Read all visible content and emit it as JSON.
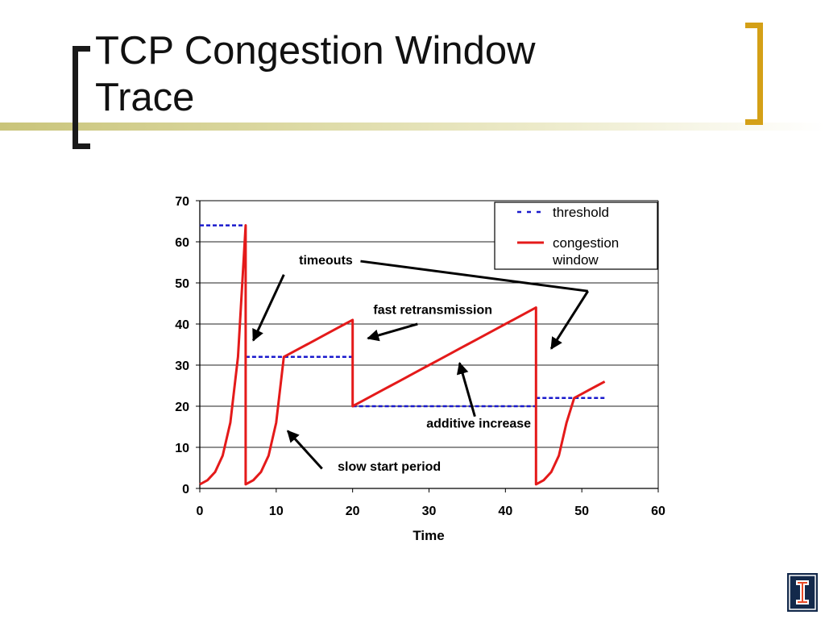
{
  "slide": {
    "title": "TCP Congestion Window\nTrace"
  },
  "logo": {
    "icon": "university-illinois-logo-icon"
  },
  "chart_data": {
    "type": "line",
    "xlabel": "Time",
    "ylabel": "",
    "xlim": [
      0,
      60
    ],
    "ylim": [
      0,
      70
    ],
    "xticks": [
      "0",
      "10",
      "20",
      "30",
      "40",
      "50",
      "60"
    ],
    "yticks": [
      "0",
      "10",
      "20",
      "30",
      "40",
      "50",
      "60",
      "70"
    ],
    "grid": "horizontal",
    "legend_position": "top-right",
    "legend": [
      "threshold",
      "congestion window"
    ],
    "series": [
      {
        "name": "threshold",
        "color": "#1a1acc",
        "style": "dashed",
        "segments": [
          [
            [
              0,
              64
            ],
            [
              6,
              64
            ]
          ],
          [
            [
              6,
              32
            ],
            [
              20,
              32
            ]
          ],
          [
            [
              20,
              20
            ],
            [
              44,
              20
            ]
          ],
          [
            [
              44,
              22
            ],
            [
              53,
              22
            ]
          ]
        ]
      },
      {
        "name": "congestion window",
        "color": "#e41a1a",
        "style": "solid",
        "points": [
          [
            0,
            1
          ],
          [
            1,
            2
          ],
          [
            2,
            4
          ],
          [
            3,
            8
          ],
          [
            4,
            16
          ],
          [
            5,
            32
          ],
          [
            6,
            64
          ],
          [
            6,
            1
          ],
          [
            7,
            2
          ],
          [
            8,
            4
          ],
          [
            9,
            8
          ],
          [
            10,
            16
          ],
          [
            11,
            32
          ],
          [
            12,
            33
          ],
          [
            13,
            34
          ],
          [
            14,
            35
          ],
          [
            15,
            36
          ],
          [
            16,
            37
          ],
          [
            17,
            38
          ],
          [
            18,
            39
          ],
          [
            19,
            40
          ],
          [
            20,
            41
          ],
          [
            20,
            20
          ],
          [
            21,
            21
          ],
          [
            22,
            22
          ],
          [
            23,
            23
          ],
          [
            24,
            24
          ],
          [
            25,
            25
          ],
          [
            26,
            26
          ],
          [
            27,
            27
          ],
          [
            28,
            28
          ],
          [
            29,
            29
          ],
          [
            30,
            30
          ],
          [
            31,
            31
          ],
          [
            32,
            32
          ],
          [
            33,
            33
          ],
          [
            34,
            34
          ],
          [
            35,
            35
          ],
          [
            36,
            36
          ],
          [
            37,
            37
          ],
          [
            38,
            38
          ],
          [
            39,
            39
          ],
          [
            40,
            40
          ],
          [
            41,
            41
          ],
          [
            42,
            42
          ],
          [
            43,
            43
          ],
          [
            44,
            44
          ],
          [
            44,
            1
          ],
          [
            45,
            2
          ],
          [
            46,
            4
          ],
          [
            47,
            8
          ],
          [
            48,
            16
          ],
          [
            49,
            22
          ],
          [
            50,
            23
          ],
          [
            51,
            24
          ],
          [
            52,
            25
          ],
          [
            53,
            26
          ]
        ]
      }
    ],
    "annotations": [
      {
        "text": "timeouts",
        "at": [
          16.5,
          54.5
        ],
        "arrows": [
          [
            [
              11,
              52
            ],
            [
              7,
              36
            ]
          ],
          [
            [
              50.8,
              48
            ],
            [
              46,
              34
            ]
          ]
        ]
      },
      {
        "text": "fast retransmission",
        "at": [
          30.5,
          42.5
        ],
        "arrows": [
          [
            [
              28.5,
              40
            ],
            [
              22,
              36.5
            ]
          ]
        ]
      },
      {
        "text": "additive increase",
        "at": [
          36.5,
          14.8
        ],
        "arrows": [
          [
            [
              36,
              17.5
            ],
            [
              34,
              30.5
            ]
          ]
        ]
      },
      {
        "text": "slow start period",
        "at": [
          24.8,
          4.3
        ],
        "arrows": [
          [
            [
              16,
              4.8
            ],
            [
              11.5,
              14
            ]
          ]
        ]
      }
    ]
  }
}
